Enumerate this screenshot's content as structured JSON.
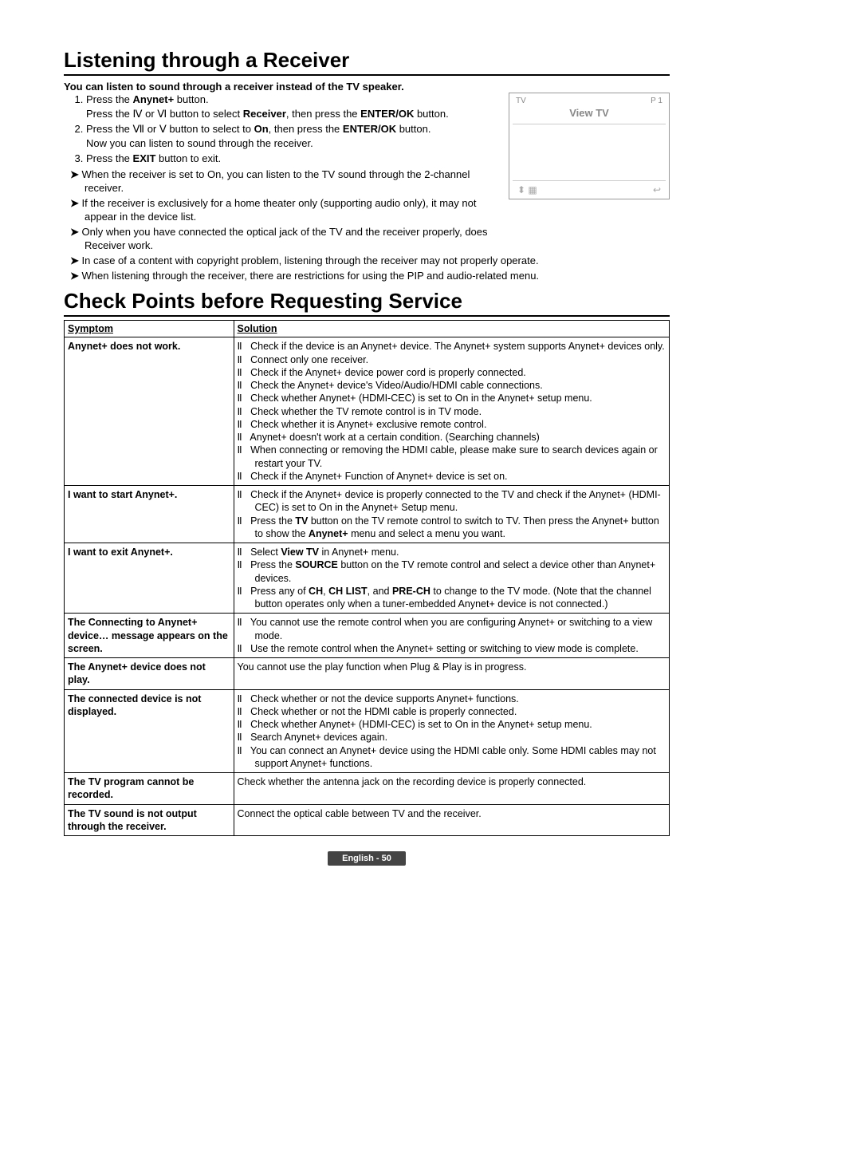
{
  "section1": {
    "title": "Listening through a Receiver",
    "intro": "You can listen to sound through a receiver instead of the TV speaker.",
    "steps_html": [
      "Press the <b>Anynet+</b> button.<br>Press the Ⅳ or Ⅵ button to select <b>Receiver</b>, then press the <b>ENTER/OK</b> button.",
      "Press the Ⅶ or Ⅴ button to select to <b>On</b>, then press the <b>ENTER/OK</b> button.<br>Now you can listen to sound through the receiver.",
      "Press the <b>EXIT</b> button to exit."
    ],
    "arrows_upper": [
      "When the receiver is set to On, you can listen to the TV sound through the 2-channel receiver.",
      "If the receiver is exclusively for a home theater only (supporting audio only), it may not appear in the device list.",
      "Only when you have connected the optical jack of the TV and the receiver properly, does Receiver work."
    ],
    "arrows_lower": [
      "In case of a content with copyright problem, listening through the receiver may not properly operate.",
      "When listening through the receiver, there are restrictions for using the PIP and audio-related menu."
    ],
    "tvbox": {
      "tl": "TV",
      "tr": "P 1",
      "title": "View TV",
      "foot_left": "⬍",
      "foot_left2": "▦",
      "foot_right": "↩"
    }
  },
  "section2": {
    "title": "Check Points before Requesting Service",
    "headers": {
      "symptom": "Symptom",
      "solution": "Solution"
    },
    "bullet": "Ⅱ",
    "rows": [
      {
        "symptom": "Anynet+ does not work.",
        "solutions": [
          "Check if the device is an Anynet+ device. The Anynet+ system supports Anynet+ devices only.",
          "Connect only one receiver.",
          "Check if the Anynet+ device power cord is properly connected.",
          "Check the Anynet+ device's Video/Audio/HDMI cable connections.",
          "Check whether Anynet+ (HDMI-CEC) is set to On in the Anynet+ setup menu.",
          "Check whether the TV remote control is in TV mode.",
          "Check whether it is Anynet+ exclusive remote control.",
          "Anynet+ doesn't work at a certain condition. (Searching channels)",
          "When connecting or removing the HDMI cable, please make sure to search devices again or restart your TV.",
          "Check if the Anynet+ Function of Anynet+ device is set on."
        ]
      },
      {
        "symptom": "I want to start Anynet+.",
        "solutions_html": [
          "Check if the Anynet+ device is properly connected to the TV and check if the Anynet+ (HDMI-CEC) is set to On in the Anynet+ Setup menu.",
          "Press the <b>TV</b> button on the TV remote control to switch to TV. Then press the Anynet+ button to show the <b>Anynet+</b> menu and select a menu you want."
        ]
      },
      {
        "symptom": "I want to exit Anynet+.",
        "solutions_html": [
          "Select <b>View TV</b> in Anynet+ menu.",
          "Press the <b>SOURCE</b> button on the TV remote control and select a device other than Anynet+ devices.",
          "Press any of <b>CH</b>, <b>CH LIST</b>, and <b>PRE-CH</b> to change to the TV mode. (Note that the channel button operates only when a tuner-embedded Anynet+ device is not connected.)"
        ]
      },
      {
        "symptom": "The Connecting to Anynet+ device… message appears on the screen.",
        "solutions": [
          "You cannot use the remote control when you are configuring Anynet+ or switching to a view mode.",
          "Use the remote control when the Anynet+ setting or switching to view mode is complete."
        ]
      },
      {
        "symptom": "The Anynet+ device does not play.",
        "plain": "You cannot use the play function when Plug & Play is in progress."
      },
      {
        "symptom": "The connected device is not displayed.",
        "solutions": [
          "Check whether or not the device supports Anynet+ functions.",
          "Check whether or not the HDMI cable is properly connected.",
          "Check whether Anynet+ (HDMI-CEC) is set to On in the Anynet+ setup menu.",
          "Search Anynet+ devices again.",
          "You can connect an Anynet+ device using the HDMI cable only. Some HDMI cables may not support Anynet+ functions."
        ]
      },
      {
        "symptom": "The TV program cannot be recorded.",
        "plain": "Check whether the antenna jack on the recording device is properly connected."
      },
      {
        "symptom": "The TV sound is not output through the receiver.",
        "plain": "Connect the optical cable between TV and the receiver."
      }
    ]
  },
  "footer": "English - 50"
}
